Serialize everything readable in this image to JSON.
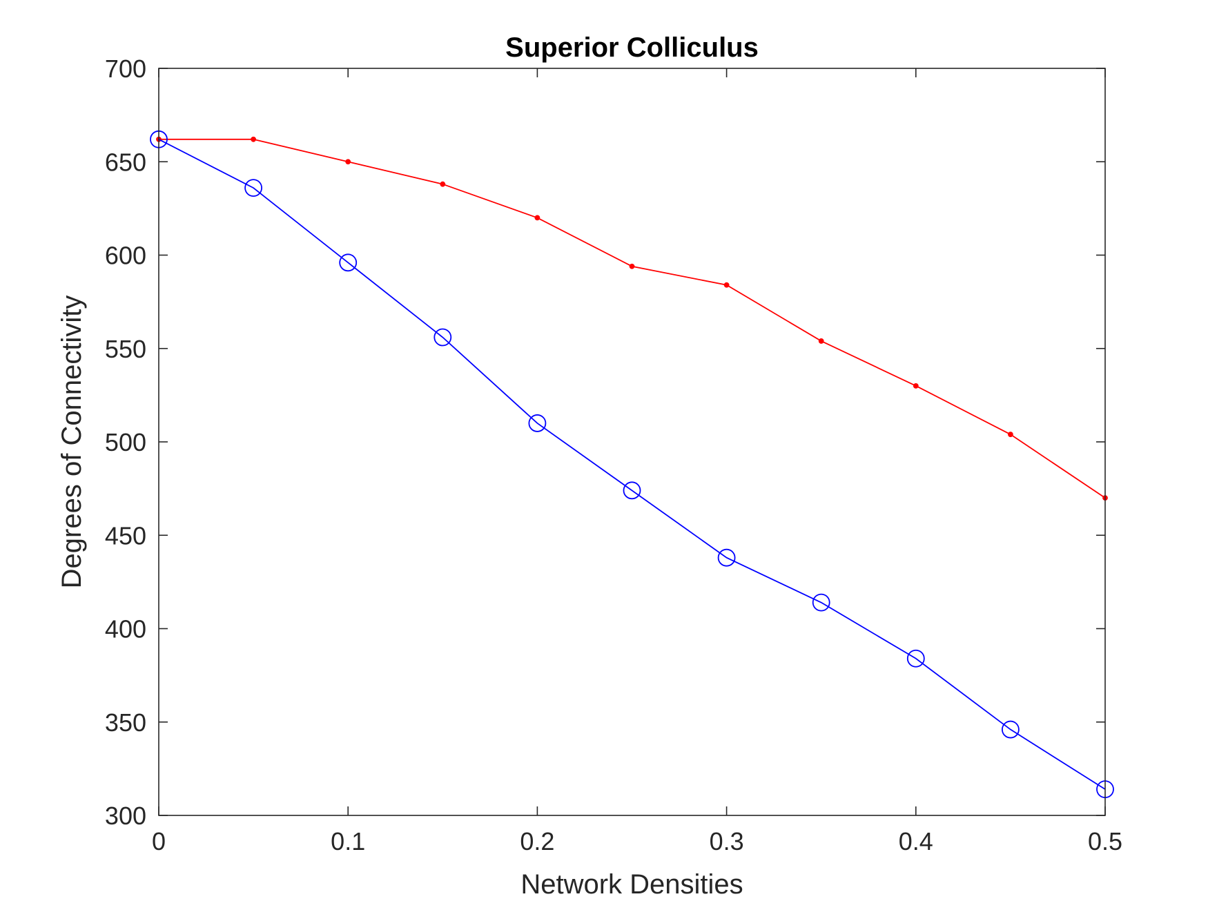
{
  "chart_data": {
    "type": "line",
    "title": "Superior Colliculus",
    "xlabel": "Network Densities",
    "ylabel": "Degrees of Connectivity",
    "xlim": [
      0,
      0.5
    ],
    "ylim": [
      300,
      700
    ],
    "x_ticks": [
      0,
      0.1,
      0.2,
      0.3,
      0.4,
      0.5
    ],
    "x_tick_labels": [
      "0",
      "0.1",
      "0.2",
      "0.3",
      "0.4",
      "0.5"
    ],
    "y_ticks": [
      300,
      350,
      400,
      450,
      500,
      550,
      600,
      650,
      700
    ],
    "y_tick_labels": [
      "300",
      "350",
      "400",
      "450",
      "500",
      "550",
      "600",
      "650",
      "700"
    ],
    "grid": false,
    "legend": "none",
    "x": [
      0,
      0.05,
      0.1,
      0.15,
      0.2,
      0.25,
      0.3,
      0.35,
      0.4,
      0.45,
      0.5
    ],
    "series": [
      {
        "color": "#ff0000",
        "marker": "dot",
        "values": [
          662,
          662,
          650,
          638,
          620,
          594,
          584,
          554,
          530,
          504,
          470
        ]
      },
      {
        "color": "#0000ff",
        "marker": "circle",
        "values": [
          662,
          636,
          596,
          556,
          510,
          474,
          438,
          414,
          384,
          346,
          314
        ]
      }
    ]
  }
}
